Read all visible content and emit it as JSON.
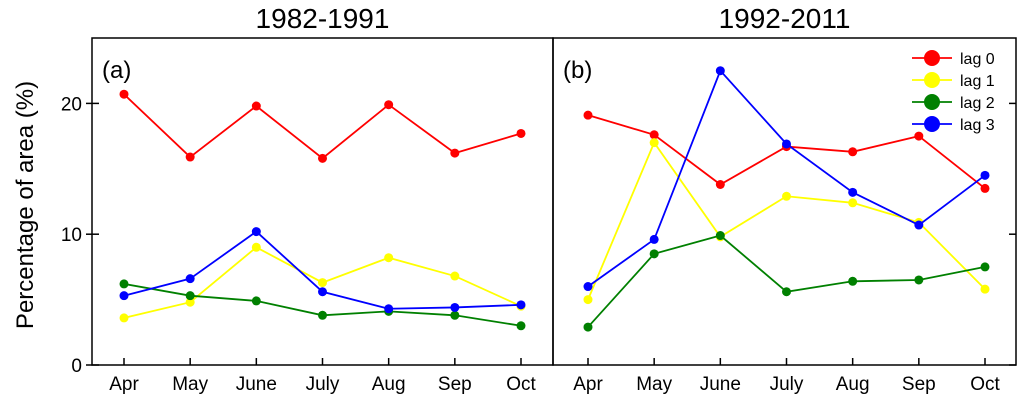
{
  "chart_data": [
    {
      "type": "line",
      "title": "1982-1991",
      "panel_label": "(a)",
      "categories": [
        "Apr",
        "May",
        "June",
        "July",
        "Aug",
        "Sep",
        "Oct"
      ],
      "ylabel": "Percentage of area (%)",
      "xlabel": "",
      "ylim": [
        0,
        25
      ],
      "yticks": [
        0,
        10,
        20
      ],
      "series": [
        {
          "name": "lag 0",
          "color": "#ff0000",
          "values": [
            20.7,
            15.9,
            19.8,
            15.8,
            19.9,
            16.2,
            17.7
          ]
        },
        {
          "name": "lag 1",
          "color": "#ffff00",
          "values": [
            3.6,
            4.8,
            9.0,
            6.3,
            8.2,
            6.8,
            4.5
          ]
        },
        {
          "name": "lag 2",
          "color": "#008000",
          "values": [
            6.2,
            5.3,
            4.9,
            3.8,
            4.1,
            3.8,
            3.0
          ]
        },
        {
          "name": "lag 3",
          "color": "#0000ff",
          "values": [
            5.3,
            6.6,
            10.2,
            5.6,
            4.3,
            4.4,
            4.6
          ]
        }
      ]
    },
    {
      "type": "line",
      "title": "1992-2011",
      "panel_label": "(b)",
      "categories": [
        "Apr",
        "May",
        "June",
        "July",
        "Aug",
        "Sep",
        "Oct"
      ],
      "ylabel": "",
      "xlabel": "",
      "ylim": [
        0,
        25
      ],
      "yticks": [
        0,
        10,
        20
      ],
      "legend_position": "top-right",
      "series": [
        {
          "name": "lag 0",
          "color": "#ff0000",
          "values": [
            19.1,
            17.6,
            13.8,
            16.7,
            16.3,
            17.5,
            13.5
          ]
        },
        {
          "name": "lag 1",
          "color": "#ffff00",
          "values": [
            5.0,
            17.0,
            9.8,
            12.9,
            12.4,
            10.9,
            5.8
          ]
        },
        {
          "name": "lag 2",
          "color": "#008000",
          "values": [
            2.9,
            8.5,
            9.9,
            5.6,
            6.4,
            6.5,
            7.5
          ]
        },
        {
          "name": "lag 3",
          "color": "#0000ff",
          "values": [
            6.0,
            9.6,
            22.5,
            16.9,
            13.2,
            10.7,
            14.5
          ]
        }
      ]
    }
  ]
}
